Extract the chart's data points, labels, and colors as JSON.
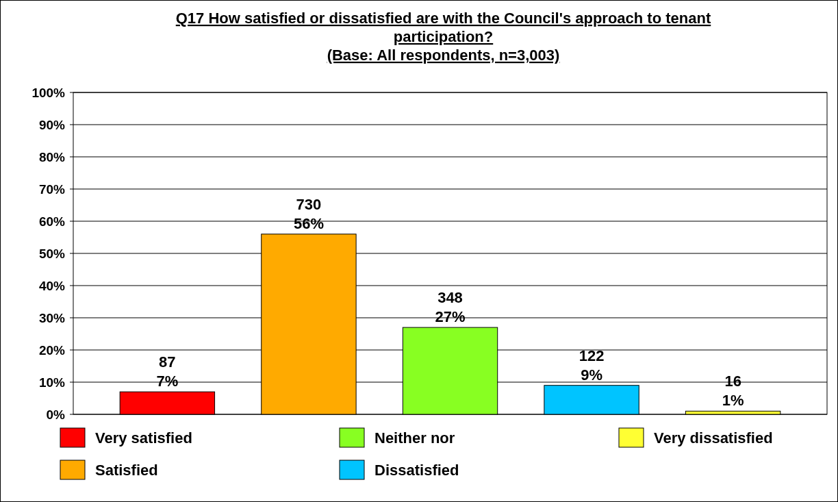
{
  "chart_data": {
    "type": "bar",
    "title": "Q17 How satisfied or dissatisfied are with the Council's approach to tenant participation?",
    "subtitle": "(Base: All respondents, n=3,003)",
    "categories": [
      null,
      null,
      null,
      null,
      null
    ],
    "series": [
      {
        "name": "Very satisfied",
        "color": "#ff0000",
        "values": [
          7,
          null,
          null,
          null,
          null
        ],
        "value_labels": [
          "87\n7%",
          null,
          null,
          null,
          null
        ]
      },
      {
        "name": "Satisfied",
        "color": "#ffaa00",
        "values": [
          null,
          56,
          null,
          null,
          null
        ],
        "value_labels": [
          null,
          "730\n56%",
          null,
          null,
          null
        ]
      },
      {
        "name": "Neither nor",
        "color": "#88ff22",
        "values": [
          null,
          null,
          27,
          null,
          null
        ],
        "value_labels": [
          null,
          null,
          "348\n27%",
          null,
          null
        ]
      },
      {
        "name": "Dissatisfied",
        "color": "#00c4ff",
        "values": [
          null,
          null,
          null,
          9,
          null
        ],
        "value_labels": [
          null,
          null,
          null,
          "122\n9%",
          null
        ]
      },
      {
        "name": "Very dissatisfied",
        "color": "#ffff33",
        "values": [
          null,
          null,
          null,
          null,
          1
        ],
        "value_labels": [
          null,
          null,
          null,
          null,
          "16\n1%"
        ]
      }
    ],
    "ylim": [
      0,
      100
    ],
    "yticks": [
      {
        "value": 0,
        "label": "0%"
      },
      {
        "value": 10,
        "label": "10%"
      },
      {
        "value": 20,
        "label": "20%"
      },
      {
        "value": 30,
        "label": "30%"
      },
      {
        "value": 40,
        "label": "40%"
      },
      {
        "value": 50,
        "label": "50%"
      },
      {
        "value": 60,
        "label": "60%"
      },
      {
        "value": 70,
        "label": "70%"
      },
      {
        "value": 80,
        "label": "80%"
      },
      {
        "value": 90,
        "label": "90%"
      },
      {
        "value": 100,
        "label": "100%"
      }
    ],
    "grid": "y",
    "legend": "bottom"
  }
}
